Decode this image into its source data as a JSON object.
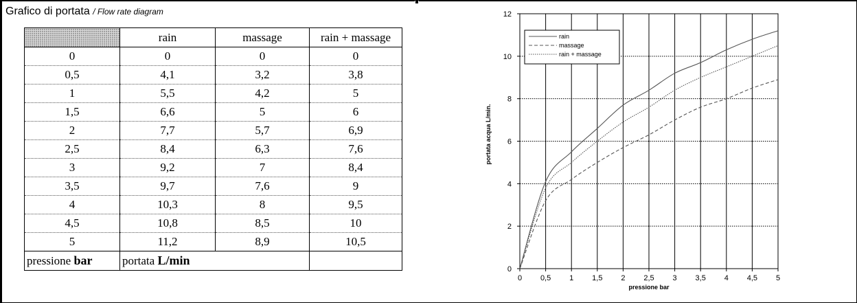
{
  "header": {
    "title": "Grafico di portata",
    "subtitle": "/ Flow rate diagram"
  },
  "table": {
    "headers": [
      "",
      "rain",
      "massage",
      "rain + massage"
    ],
    "rows": [
      [
        "0",
        "0",
        "0",
        "0"
      ],
      [
        "0,5",
        "4,1",
        "3,2",
        "3,8"
      ],
      [
        "1",
        "5,5",
        "4,2",
        "5"
      ],
      [
        "1,5",
        "6,6",
        "5",
        "6"
      ],
      [
        "2",
        "7,7",
        "5,7",
        "6,9"
      ],
      [
        "2,5",
        "8,4",
        "6,3",
        "7,6"
      ],
      [
        "3",
        "9,2",
        "7",
        "8,4"
      ],
      [
        "3,5",
        "9,7",
        "7,6",
        "9"
      ],
      [
        "4",
        "10,3",
        "8",
        "9,5"
      ],
      [
        "4,5",
        "10,8",
        "8,5",
        "10"
      ],
      [
        "5",
        "11,2",
        "8,9",
        "10,5"
      ]
    ],
    "footer": {
      "pressure_label": "pressione",
      "pressure_unit": "bar",
      "flow_label": "portata",
      "flow_unit": "L/min"
    }
  },
  "chart_data": {
    "type": "line",
    "title": "",
    "xlabel": "pressione   bar",
    "ylabel": "portata acqua   L/min.",
    "xlim": [
      0,
      5
    ],
    "ylim": [
      0,
      12
    ],
    "xticks": [
      "0",
      "0,5",
      "1",
      "1,5",
      "2",
      "2,5",
      "3",
      "3,5",
      "4",
      "4,5",
      "5"
    ],
    "yticks": [
      "0",
      "2",
      "4",
      "6",
      "8",
      "10",
      "12"
    ],
    "grid": true,
    "legend_position": "top-left",
    "x": [
      0,
      0.5,
      1,
      1.5,
      2,
      2.5,
      3,
      3.5,
      4,
      4.5,
      5
    ],
    "series": [
      {
        "name": "rain",
        "style": "solid",
        "values": [
          0,
          4.1,
          5.5,
          6.6,
          7.7,
          8.4,
          9.2,
          9.7,
          10.3,
          10.8,
          11.2
        ]
      },
      {
        "name": "massage",
        "style": "dashed",
        "values": [
          0,
          3.2,
          4.2,
          5,
          5.7,
          6.3,
          7,
          7.6,
          8,
          8.5,
          8.9
        ]
      },
      {
        "name": "rain + massage",
        "style": "dotted",
        "values": [
          0,
          3.8,
          5,
          6,
          6.9,
          7.6,
          8.4,
          9,
          9.5,
          10,
          10.5
        ]
      }
    ],
    "colors": {
      "line": "#555555",
      "grid": "#000000"
    }
  }
}
